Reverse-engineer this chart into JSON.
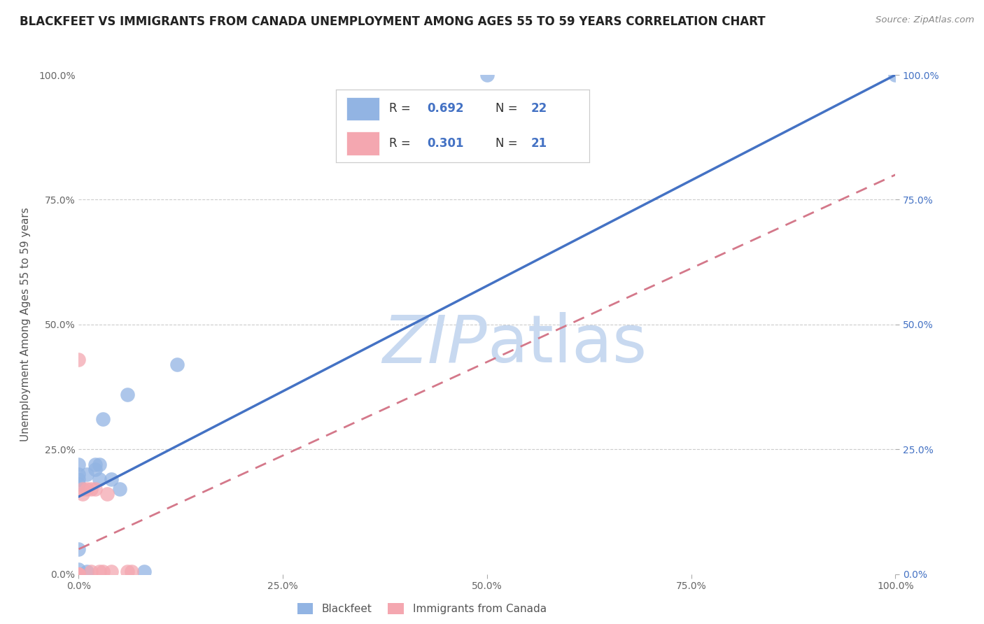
{
  "title": "BLACKFEET VS IMMIGRANTS FROM CANADA UNEMPLOYMENT AMONG AGES 55 TO 59 YEARS CORRELATION CHART",
  "source": "Source: ZipAtlas.com",
  "ylabel": "Unemployment Among Ages 55 to 59 years",
  "xlim": [
    0,
    1.0
  ],
  "ylim": [
    0,
    1.0
  ],
  "xtick_labels": [
    "0.0%",
    "25.0%",
    "50.0%",
    "75.0%",
    "100.0%"
  ],
  "xtick_vals": [
    0,
    0.25,
    0.5,
    0.75,
    1.0
  ],
  "ytick_labels": [
    "0.0%",
    "25.0%",
    "50.0%",
    "75.0%",
    "100.0%"
  ],
  "ytick_right_labels": [
    "100.0%",
    "75.0%",
    "50.0%",
    "25.0%",
    "0.0%"
  ],
  "ytick_vals": [
    0,
    0.25,
    0.5,
    0.75,
    1.0
  ],
  "blackfeet_color": "#92b4e3",
  "immigrants_color": "#f4a7b0",
  "blackfeet_line_color": "#4472c4",
  "immigrants_line_color": "#d4788a",
  "watermark_color": "#c8d9f0",
  "grid_color": "#cccccc",
  "background_color": "#ffffff",
  "title_fontsize": 12,
  "axis_label_fontsize": 11,
  "tick_fontsize": 10,
  "r_val_color": "#4472c4",
  "legend_R1": "0.692",
  "legend_N1": "22",
  "legend_R2": "0.301",
  "legend_N2": "21",
  "bf_line_x0": 0.0,
  "bf_line_y0": 0.155,
  "bf_line_x1": 1.0,
  "bf_line_y1": 1.0,
  "im_line_x0": 0.0,
  "im_line_y0": 0.05,
  "im_line_x1": 1.0,
  "im_line_y1": 0.8,
  "blackfeet_x": [
    0.0,
    0.0,
    0.0,
    0.0,
    0.0,
    0.0,
    0.0,
    0.0,
    0.01,
    0.01,
    0.02,
    0.02,
    0.025,
    0.025,
    0.03,
    0.04,
    0.05,
    0.06,
    0.08,
    0.12,
    0.5,
    1.0
  ],
  "blackfeet_y": [
    0.0,
    0.0,
    0.01,
    0.05,
    0.18,
    0.19,
    0.2,
    0.22,
    0.005,
    0.2,
    0.21,
    0.22,
    0.19,
    0.22,
    0.31,
    0.19,
    0.17,
    0.36,
    0.005,
    0.42,
    1.0,
    1.0
  ],
  "immigrants_x": [
    0.0,
    0.0,
    0.0,
    0.0,
    0.0,
    0.0,
    0.0,
    0.0,
    0.0,
    0.005,
    0.005,
    0.01,
    0.015,
    0.015,
    0.02,
    0.025,
    0.03,
    0.035,
    0.04,
    0.06,
    0.065
  ],
  "immigrants_y": [
    0.0,
    0.0,
    0.0,
    0.0,
    0.0,
    0.0,
    0.0,
    0.0,
    0.43,
    0.16,
    0.17,
    0.17,
    0.005,
    0.17,
    0.17,
    0.005,
    0.005,
    0.16,
    0.005,
    0.005,
    0.005
  ]
}
